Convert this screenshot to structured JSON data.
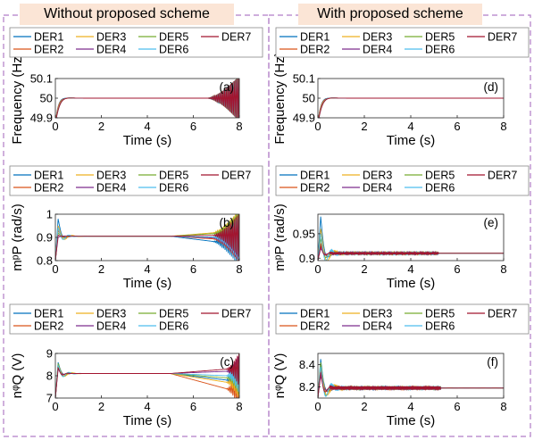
{
  "figure": {
    "left_title": "Without proposed scheme",
    "right_title": "With proposed scheme",
    "border_color": "#b07cc6",
    "title_bg": "#fbe5d6"
  },
  "legend": {
    "entries": [
      "DER1",
      "DER2",
      "DER3",
      "DER4",
      "DER5",
      "DER6",
      "DER7"
    ],
    "colors": [
      "#0072bd",
      "#d95319",
      "#edb120",
      "#7e2f8e",
      "#77ac30",
      "#4dbeee",
      "#a2142f"
    ]
  },
  "chart_data": [
    {
      "id": "a",
      "panel_label": "(a)",
      "type": "line",
      "xlabel": "Time (s)",
      "ylabel": "Frequency (Hz)",
      "xlim": [
        0,
        8
      ],
      "ylim": [
        49.9,
        50.1
      ],
      "xticks": [
        0,
        2,
        4,
        6,
        8
      ],
      "yticks": [
        49.9,
        50,
        50.1
      ],
      "ytick_labels": [
        "49.9",
        "50",
        "50.1"
      ],
      "steady": 50.0,
      "initial": 49.87,
      "settle_time": 0.6,
      "overshoot": 0.003,
      "instability_onset": 6.6,
      "final_amplitude": 0.12
    },
    {
      "id": "d",
      "panel_label": "(d)",
      "type": "line",
      "xlabel": "Time (s)",
      "ylabel": "Frequency (Hz)",
      "xlim": [
        0,
        8
      ],
      "ylim": [
        49.9,
        50.1
      ],
      "xticks": [
        0,
        2,
        4,
        6,
        8
      ],
      "yticks": [
        49.9,
        50,
        50.1
      ],
      "ytick_labels": [
        "49.9",
        "50",
        "50.1"
      ],
      "steady": 50.0,
      "initial": 49.87,
      "settle_time": 0.6,
      "overshoot": 0.003
    },
    {
      "id": "b",
      "panel_label": "(b)",
      "type": "line",
      "xlabel": "Time (s)",
      "ylabel": "mᵖP  (rad/s)",
      "xlim": [
        0,
        8
      ],
      "ylim": [
        0.8,
        1.0
      ],
      "xticks": [
        0,
        2,
        4,
        6,
        8
      ],
      "yticks": [
        0.8,
        0.9,
        1.0
      ],
      "ytick_labels": [
        "0.8",
        "0.9",
        "1"
      ],
      "steady": 0.905,
      "peaks": [
        0.98,
        0.93,
        0.95,
        0.9,
        0.92,
        0.94,
        0.91
      ],
      "drift_start": 5.0,
      "drift_offsets": [
        -0.03,
        -0.015,
        0.02,
        -0.01,
        0.015,
        -0.005,
        0.005
      ],
      "instability_onset": 6.8,
      "final_amplitude": 0.1
    },
    {
      "id": "e",
      "panel_label": "(e)",
      "type": "line",
      "xlabel": "Time (s)",
      "ylabel": "mᵖP  (rad/s)",
      "xlim": [
        0,
        8
      ],
      "ylim": [
        0.895,
        0.99
      ],
      "xticks": [
        0,
        2,
        4,
        6,
        8
      ],
      "yticks": [
        0.9,
        0.95
      ],
      "ytick_labels": [
        "0.9",
        "0.95"
      ],
      "steady": 0.91,
      "peaks": [
        0.985,
        0.93,
        0.96,
        0.92,
        0.94,
        0.95,
        0.925
      ],
      "ripple_until": 5.2,
      "ripple_amp": 0.002
    },
    {
      "id": "c",
      "panel_label": "(c)",
      "type": "line",
      "xlabel": "Time (s)",
      "ylabel": "nᵠQ  (V)",
      "xlim": [
        0,
        8
      ],
      "ylim": [
        7,
        9
      ],
      "xticks": [
        0,
        2,
        4,
        6,
        8
      ],
      "yticks": [
        7,
        8,
        9
      ],
      "ytick_labels": [
        "7",
        "8",
        "9"
      ],
      "steady": 8.1,
      "peaks": [
        8.6,
        8.4,
        8.5,
        8.3,
        8.55,
        8.45,
        8.35
      ],
      "drift_start": 5.0,
      "drift_finals": [
        7.8,
        7.4,
        7.7,
        8.2,
        7.9,
        8.0,
        8.3
      ],
      "instability_onset": 7.4,
      "final_amplitude": 0.8
    },
    {
      "id": "f",
      "panel_label": "(f)",
      "type": "line",
      "xlabel": "Time (s)",
      "ylabel": "nᵠQ  (V)",
      "xlim": [
        0,
        8
      ],
      "ylim": [
        8.1,
        8.5
      ],
      "xticks": [
        0,
        2,
        4,
        6,
        8
      ],
      "yticks": [
        8.2,
        8.4
      ],
      "ytick_labels": [
        "8.2",
        "8.4"
      ],
      "steady": 8.19,
      "peaks": [
        8.45,
        8.35,
        8.4,
        8.3,
        8.42,
        8.38,
        8.33
      ],
      "ripple_until": 5.3,
      "ripple_amp": 0.015
    }
  ]
}
